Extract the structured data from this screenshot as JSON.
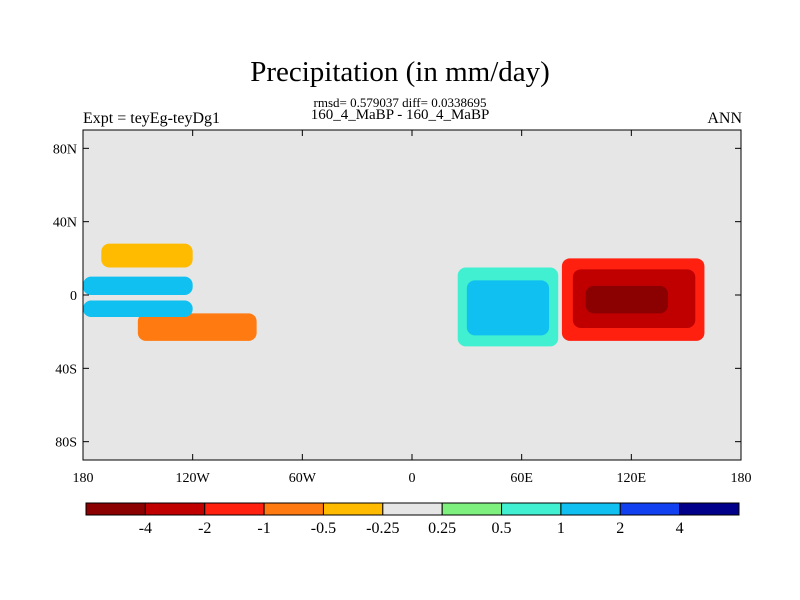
{
  "chart_data": {
    "type": "heatmap",
    "title": "Precipitation (in mm/day)",
    "stats_line": "rmsd= 0.579037 diff= 0.0338695",
    "subtitle": "160_4_MaBP - 160_4_MaBP",
    "left_label": "Expt = teyEg-teyDg1",
    "right_label": "ANN",
    "x_ticks": [
      {
        "value": -180,
        "label": "180"
      },
      {
        "value": -120,
        "label": "120W"
      },
      {
        "value": -60,
        "label": "60W"
      },
      {
        "value": 0,
        "label": "0"
      },
      {
        "value": 60,
        "label": "60E"
      },
      {
        "value": 120,
        "label": "120E"
      },
      {
        "value": 180,
        "label": "180"
      }
    ],
    "y_ticks": [
      {
        "value": 80,
        "label": "80N"
      },
      {
        "value": 40,
        "label": "40N"
      },
      {
        "value": 0,
        "label": "0"
      },
      {
        "value": -40,
        "label": "40S"
      },
      {
        "value": -80,
        "label": "80S"
      }
    ],
    "xlim": [
      -180,
      180
    ],
    "ylim": [
      -90,
      90
    ],
    "colorbar": {
      "colors": [
        "#8b0000",
        "#c00000",
        "#ff2010",
        "#ff7a10",
        "#ffbb00",
        "#e6e6e6",
        "#7ef07e",
        "#40f0d0",
        "#10c0f0",
        "#1040f0",
        "#00008b"
      ],
      "labels": [
        "-4",
        "-2",
        "-1",
        "-0.5",
        "-0.25",
        "0.25",
        "0.5",
        "1",
        "2",
        "4"
      ]
    },
    "regions": [
      {
        "name": "region-red-east-indian",
        "value": -4,
        "color": "#8b0000",
        "lon": [
          95,
          140
        ],
        "lat": [
          -10,
          5
        ]
      },
      {
        "name": "region-red-indian",
        "value": -2,
        "color": "#c00000",
        "lon": [
          88,
          155
        ],
        "lat": [
          -18,
          14
        ]
      },
      {
        "name": "region-orange-indian",
        "value": -1,
        "color": "#ff2010",
        "lon": [
          82,
          160
        ],
        "lat": [
          -25,
          20
        ]
      },
      {
        "name": "region-blue-indian",
        "value": 1,
        "color": "#40f0d0",
        "lon": [
          25,
          80
        ],
        "lat": [
          -28,
          15
        ]
      },
      {
        "name": "region-cyan-indian",
        "value": 2,
        "color": "#10c0f0",
        "lon": [
          30,
          75
        ],
        "lat": [
          -22,
          8
        ]
      },
      {
        "name": "region-blue-pacific-north",
        "value": 1,
        "color": "#10c0f0",
        "lon": [
          -180,
          -120
        ],
        "lat": [
          0,
          10
        ]
      },
      {
        "name": "region-blue-pacific-south",
        "value": 2,
        "color": "#10c0f0",
        "lon": [
          -180,
          -120
        ],
        "lat": [
          -12,
          -3
        ]
      },
      {
        "name": "region-orange-pacific",
        "value": -0.5,
        "color": "#ff7a10",
        "lon": [
          -150,
          -85
        ],
        "lat": [
          -25,
          -10
        ]
      },
      {
        "name": "region-orange-north-pacific",
        "value": -0.5,
        "color": "#ffbb00",
        "lon": [
          -170,
          -120
        ],
        "lat": [
          15,
          28
        ]
      }
    ]
  }
}
